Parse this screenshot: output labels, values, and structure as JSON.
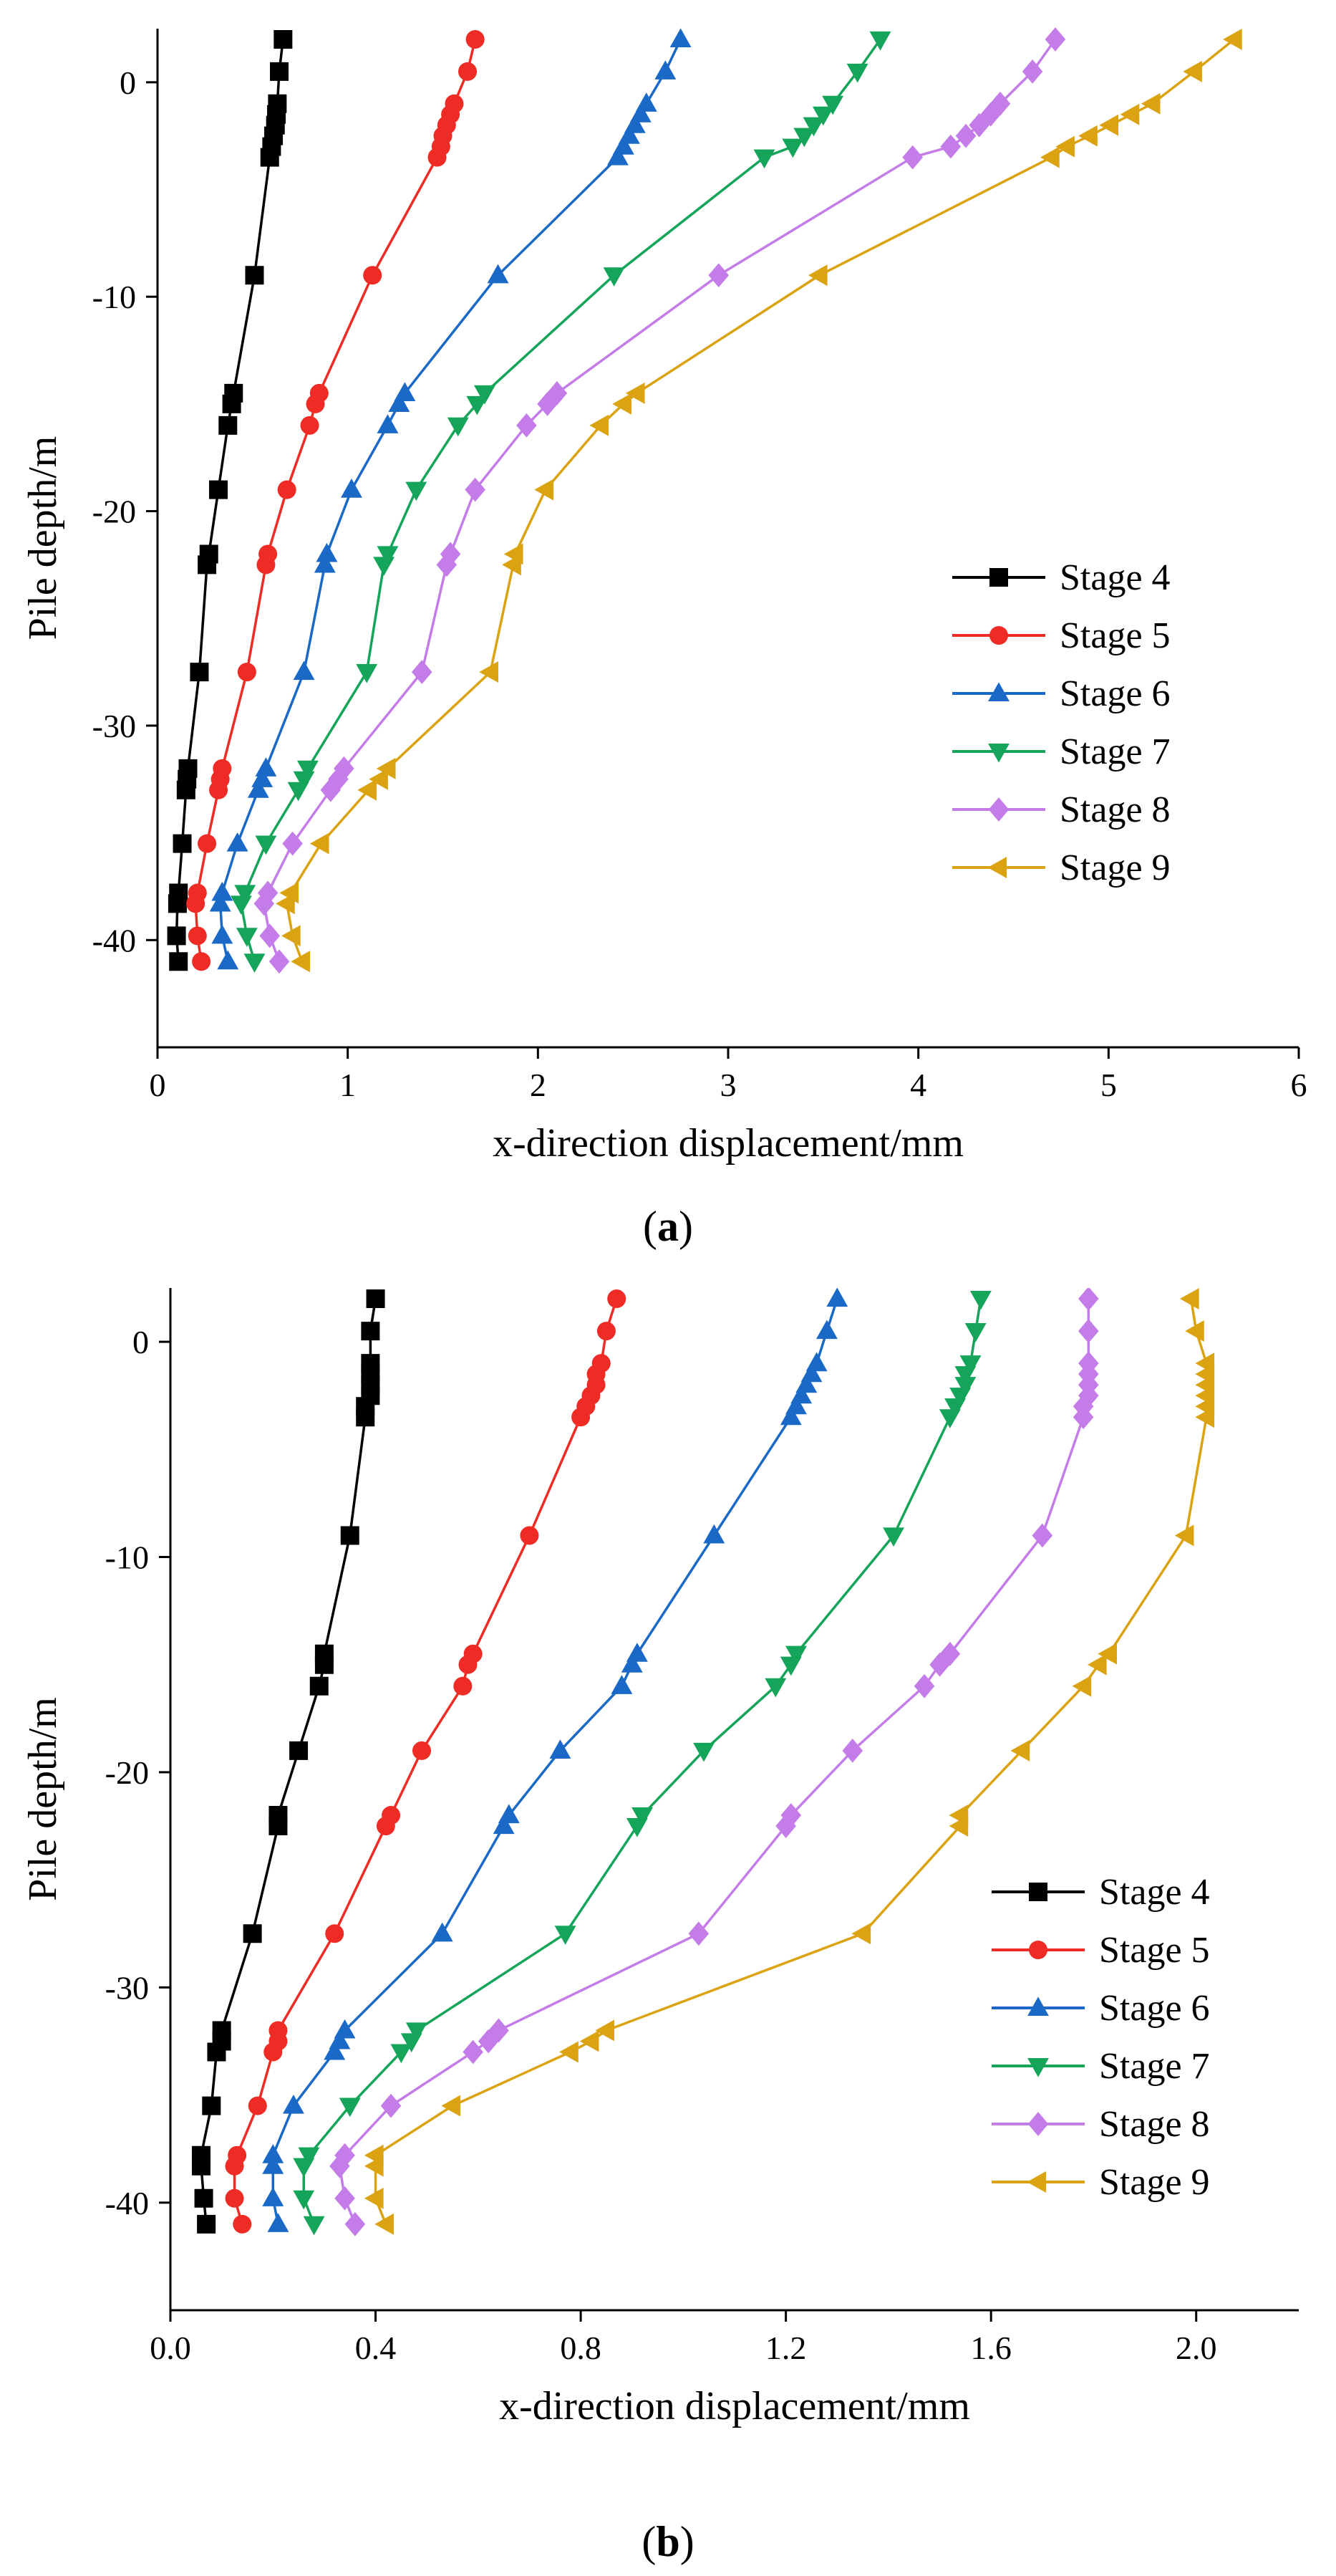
{
  "chart_data": [
    {
      "type": "line",
      "panel_label": "a",
      "xlabel": "x-direction displacement/mm",
      "ylabel": "Pile depth/m",
      "xlim": [
        0,
        6
      ],
      "ylim": [
        -45,
        2.5
      ],
      "xticks": [
        0,
        1,
        2,
        3,
        4,
        5,
        6
      ],
      "xtick_labels": [
        "0",
        "1",
        "2",
        "3",
        "4",
        "5",
        "6"
      ],
      "yticks": [
        0,
        -10,
        -20,
        -30,
        -40
      ],
      "ytick_labels": [
        "0",
        "-10",
        "-20",
        "-30",
        "-40"
      ],
      "legend_position": "right",
      "grid": false,
      "depths": [
        2,
        0.5,
        -1,
        -1.5,
        -2,
        -2.5,
        -3,
        -3.5,
        -9,
        -14.5,
        -15,
        -16,
        -19,
        -22,
        -22.5,
        -27.5,
        -32,
        -32.5,
        -33,
        -35.5,
        -37.8,
        -38.3,
        -39.8,
        -41
      ],
      "series": [
        {
          "name": "Stage 4",
          "color": "#000000",
          "marker": "square",
          "values": [
            0.66,
            0.64,
            0.63,
            0.625,
            0.62,
            0.61,
            0.6,
            0.59,
            0.51,
            0.4,
            0.39,
            0.37,
            0.32,
            0.27,
            0.26,
            0.22,
            0.16,
            0.155,
            0.15,
            0.13,
            0.11,
            0.105,
            0.1,
            0.11
          ]
        },
        {
          "name": "Stage 5",
          "color": "#ee2b24",
          "marker": "circle",
          "values": [
            1.67,
            1.63,
            1.56,
            1.54,
            1.52,
            1.5,
            1.49,
            1.47,
            1.13,
            0.85,
            0.83,
            0.8,
            0.68,
            0.58,
            0.57,
            0.47,
            0.34,
            0.33,
            0.32,
            0.26,
            0.21,
            0.2,
            0.21,
            0.23
          ]
        },
        {
          "name": "Stage 6",
          "color": "#1a69c6",
          "marker": "triangle-up",
          "values": [
            2.75,
            2.67,
            2.57,
            2.54,
            2.51,
            2.48,
            2.45,
            2.42,
            1.79,
            1.3,
            1.27,
            1.21,
            1.02,
            0.89,
            0.88,
            0.77,
            0.57,
            0.55,
            0.53,
            0.42,
            0.34,
            0.33,
            0.34,
            0.37
          ]
        },
        {
          "name": "Stage 7",
          "color": "#15a55a",
          "marker": "triangle-down",
          "values": [
            3.8,
            3.68,
            3.55,
            3.5,
            3.45,
            3.4,
            3.34,
            3.19,
            2.4,
            1.72,
            1.68,
            1.58,
            1.36,
            1.21,
            1.19,
            1.1,
            0.79,
            0.77,
            0.74,
            0.57,
            0.46,
            0.44,
            0.47,
            0.51
          ]
        },
        {
          "name": "Stage 8",
          "color": "#c47de8",
          "marker": "diamond",
          "values": [
            4.72,
            4.6,
            4.43,
            4.38,
            4.32,
            4.25,
            4.17,
            3.97,
            2.95,
            2.1,
            2.05,
            1.94,
            1.67,
            1.54,
            1.52,
            1.39,
            0.98,
            0.95,
            0.91,
            0.71,
            0.58,
            0.56,
            0.59,
            0.64
          ]
        },
        {
          "name": "Stage 9",
          "color": "#dba312",
          "marker": "triangle-left",
          "values": [
            5.66,
            5.45,
            5.23,
            5.12,
            5.01,
            4.9,
            4.78,
            4.7,
            3.48,
            2.52,
            2.45,
            2.33,
            2.04,
            1.88,
            1.87,
            1.75,
            1.21,
            1.17,
            1.11,
            0.86,
            0.7,
            0.68,
            0.71,
            0.76
          ]
        }
      ]
    },
    {
      "type": "line",
      "panel_label": "b",
      "xlabel": "x-direction displacement/mm",
      "ylabel": "Pile depth/m",
      "xlim": [
        0,
        2.2
      ],
      "ylim": [
        -45,
        2.5
      ],
      "xticks": [
        0,
        0.4,
        0.8,
        1.2,
        1.6,
        2.0
      ],
      "xtick_labels": [
        "0.0",
        "0.4",
        "0.8",
        "1.2",
        "1.6",
        "2.0"
      ],
      "yticks": [
        0,
        -10,
        -20,
        -30,
        -40
      ],
      "ytick_labels": [
        "0",
        "-10",
        "-20",
        "-30",
        "-40"
      ],
      "legend_position": "bottom-right",
      "grid": false,
      "depths": [
        2,
        0.5,
        -1,
        -1.5,
        -2,
        -2.5,
        -3,
        -3.5,
        -9,
        -14.5,
        -15,
        -16,
        -19,
        -22,
        -22.5,
        -27.5,
        -32,
        -32.5,
        -33,
        -35.5,
        -37.8,
        -38.3,
        -39.8,
        -41
      ],
      "series": [
        {
          "name": "Stage 4",
          "color": "#000000",
          "marker": "square",
          "values": [
            0.4,
            0.39,
            0.39,
            0.39,
            0.39,
            0.39,
            0.38,
            0.38,
            0.35,
            0.3,
            0.3,
            0.29,
            0.25,
            0.21,
            0.21,
            0.16,
            0.1,
            0.1,
            0.09,
            0.08,
            0.06,
            0.06,
            0.065,
            0.07
          ]
        },
        {
          "name": "Stage 5",
          "color": "#ee2b24",
          "marker": "circle",
          "values": [
            0.87,
            0.85,
            0.84,
            0.83,
            0.83,
            0.82,
            0.81,
            0.8,
            0.7,
            0.59,
            0.58,
            0.57,
            0.49,
            0.43,
            0.42,
            0.32,
            0.21,
            0.21,
            0.2,
            0.17,
            0.13,
            0.125,
            0.125,
            0.14
          ]
        },
        {
          "name": "Stage 6",
          "color": "#1a69c6",
          "marker": "triangle-up",
          "values": [
            1.3,
            1.28,
            1.26,
            1.25,
            1.24,
            1.23,
            1.22,
            1.21,
            1.06,
            0.91,
            0.9,
            0.88,
            0.76,
            0.66,
            0.65,
            0.53,
            0.34,
            0.33,
            0.32,
            0.24,
            0.2,
            0.2,
            0.2,
            0.21
          ]
        },
        {
          "name": "Stage 7",
          "color": "#15a55a",
          "marker": "triangle-down",
          "values": [
            1.58,
            1.57,
            1.56,
            1.55,
            1.55,
            1.54,
            1.53,
            1.52,
            1.41,
            1.22,
            1.21,
            1.18,
            1.04,
            0.92,
            0.91,
            0.77,
            0.48,
            0.47,
            0.45,
            0.35,
            0.27,
            0.26,
            0.26,
            0.28
          ]
        },
        {
          "name": "Stage 8",
          "color": "#c47de8",
          "marker": "diamond",
          "values": [
            1.79,
            1.79,
            1.79,
            1.79,
            1.79,
            1.79,
            1.78,
            1.78,
            1.7,
            1.52,
            1.5,
            1.47,
            1.33,
            1.21,
            1.2,
            1.03,
            0.64,
            0.62,
            0.59,
            0.43,
            0.34,
            0.33,
            0.34,
            0.36
          ]
        },
        {
          "name": "Stage 9",
          "color": "#dba312",
          "marker": "triangle-left",
          "values": [
            1.99,
            2.0,
            2.02,
            2.02,
            2.02,
            2.02,
            2.02,
            2.02,
            1.98,
            1.83,
            1.81,
            1.78,
            1.66,
            1.54,
            1.54,
            1.35,
            0.85,
            0.82,
            0.78,
            0.55,
            0.4,
            0.4,
            0.4,
            0.42
          ]
        }
      ]
    }
  ]
}
